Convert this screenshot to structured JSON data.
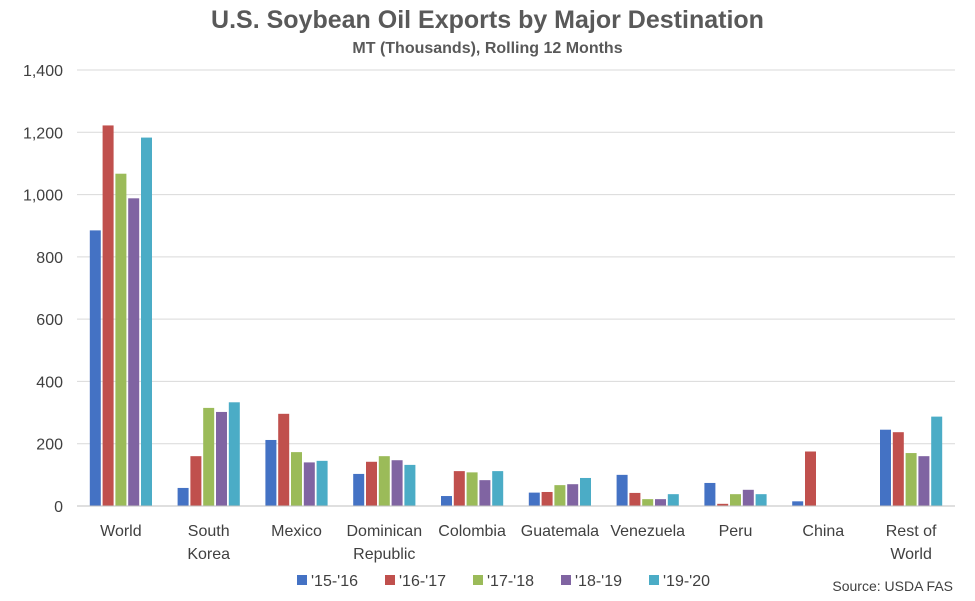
{
  "chart_data": {
    "type": "bar",
    "title": "U.S. Soybean Oil Exports by Major Destination",
    "subtitle": "MT (Thousands), Rolling 12 Months",
    "xlabel": "",
    "ylabel": "",
    "ylim": [
      0,
      1400
    ],
    "yticks": [
      "0",
      "200",
      "400",
      "600",
      "800",
      "1,000",
      "1,200",
      "1,400"
    ],
    "grid": true,
    "legend_position": "bottom",
    "source": "Source: USDA FAS",
    "categories": [
      [
        "World"
      ],
      [
        "South",
        "Korea"
      ],
      [
        "Mexico"
      ],
      [
        "Dominican",
        "Republic"
      ],
      [
        "Colombia"
      ],
      [
        "Guatemala"
      ],
      [
        "Venezuela"
      ],
      [
        "Peru"
      ],
      [
        "China"
      ],
      [
        "Rest of",
        "World"
      ]
    ],
    "series": [
      {
        "name": "'15-'16",
        "color": "#4472C4",
        "values": [
          885,
          58,
          212,
          103,
          32,
          43,
          100,
          74,
          15,
          245
        ]
      },
      {
        "name": "'16-'17",
        "color": "#C0504D",
        "values": [
          1222,
          160,
          296,
          142,
          112,
          45,
          42,
          7,
          175,
          237
        ]
      },
      {
        "name": "'17-'18",
        "color": "#9BBB59",
        "values": [
          1067,
          315,
          173,
          160,
          108,
          67,
          22,
          38,
          0,
          170
        ]
      },
      {
        "name": "'18-'19",
        "color": "#8064A2",
        "values": [
          988,
          302,
          140,
          147,
          83,
          70,
          22,
          52,
          0,
          160
        ]
      },
      {
        "name": "'19-'20",
        "color": "#4BACC6",
        "values": [
          1183,
          333,
          145,
          132,
          112,
          90,
          38,
          38,
          0,
          287
        ]
      }
    ]
  }
}
